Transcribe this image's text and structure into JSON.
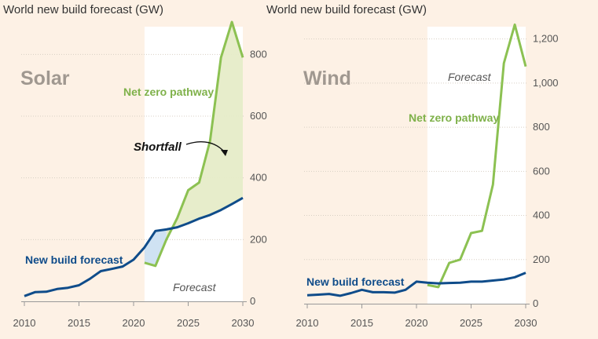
{
  "chart_data": [
    {
      "type": "line",
      "title": "World new build forecast (GW)",
      "label": "Solar",
      "x": [
        2010,
        2011,
        2012,
        2013,
        2014,
        2015,
        2016,
        2017,
        2018,
        2019,
        2020,
        2021,
        2022,
        2023,
        2024,
        2025,
        2026,
        2027,
        2028,
        2029,
        2030
      ],
      "series": [
        {
          "name": "New build forecast",
          "color": "#0f4c8a",
          "values": [
            17,
            30,
            31,
            40,
            44,
            52,
            73,
            98,
            105,
            113,
            135,
            175,
            228,
            233,
            240,
            253,
            268,
            280,
            296,
            315,
            335
          ]
        },
        {
          "name": "Net zero pathway",
          "color": "#8cc152",
          "x": [
            2021,
            2022,
            2023,
            2024,
            2025,
            2026,
            2027,
            2028,
            2029,
            2030
          ],
          "values": [
            125,
            115,
            200,
            270,
            360,
            385,
            520,
            790,
            905,
            790
          ]
        }
      ],
      "forecast_region": [
        2021,
        2030
      ],
      "forecast_label": "Forecast",
      "annotation": "Shortfall",
      "xticks": [
        "2010",
        "2015",
        "2020",
        "2025",
        "2030"
      ],
      "yticks": [
        "0",
        "200",
        "400",
        "600",
        "800"
      ],
      "ylim": [
        0,
        900
      ],
      "y_axis_side": "right",
      "grid": true
    },
    {
      "type": "line",
      "title": "World new build forecast (GW)",
      "label": "Wind",
      "x": [
        2010,
        2011,
        2012,
        2013,
        2014,
        2015,
        2016,
        2017,
        2018,
        2019,
        2020,
        2021,
        2022,
        2023,
        2024,
        2025,
        2026,
        2027,
        2028,
        2029,
        2030
      ],
      "series": [
        {
          "name": "New build forecast",
          "color": "#0f4c8a",
          "values": [
            38,
            41,
            44,
            36,
            48,
            63,
            52,
            52,
            50,
            63,
            100,
            95,
            92,
            94,
            95,
            100,
            100,
            105,
            110,
            120,
            140
          ]
        },
        {
          "name": "Net zero pathway",
          "color": "#8cc152",
          "x": [
            2021,
            2022,
            2023,
            2024,
            2025,
            2026,
            2027,
            2028,
            2029,
            2030
          ],
          "values": [
            85,
            75,
            185,
            200,
            320,
            330,
            540,
            1090,
            1265,
            1075
          ]
        }
      ],
      "forecast_region": [
        2021,
        2030
      ],
      "forecast_label": "Forecast",
      "xticks": [
        "2010",
        "2015",
        "2020",
        "2025",
        "2030"
      ],
      "yticks": [
        "0",
        "200",
        "400",
        "600",
        "800",
        "1,000",
        "1,200"
      ],
      "ylim": [
        0,
        1270
      ],
      "y_axis_side": "right",
      "grid": true
    }
  ]
}
